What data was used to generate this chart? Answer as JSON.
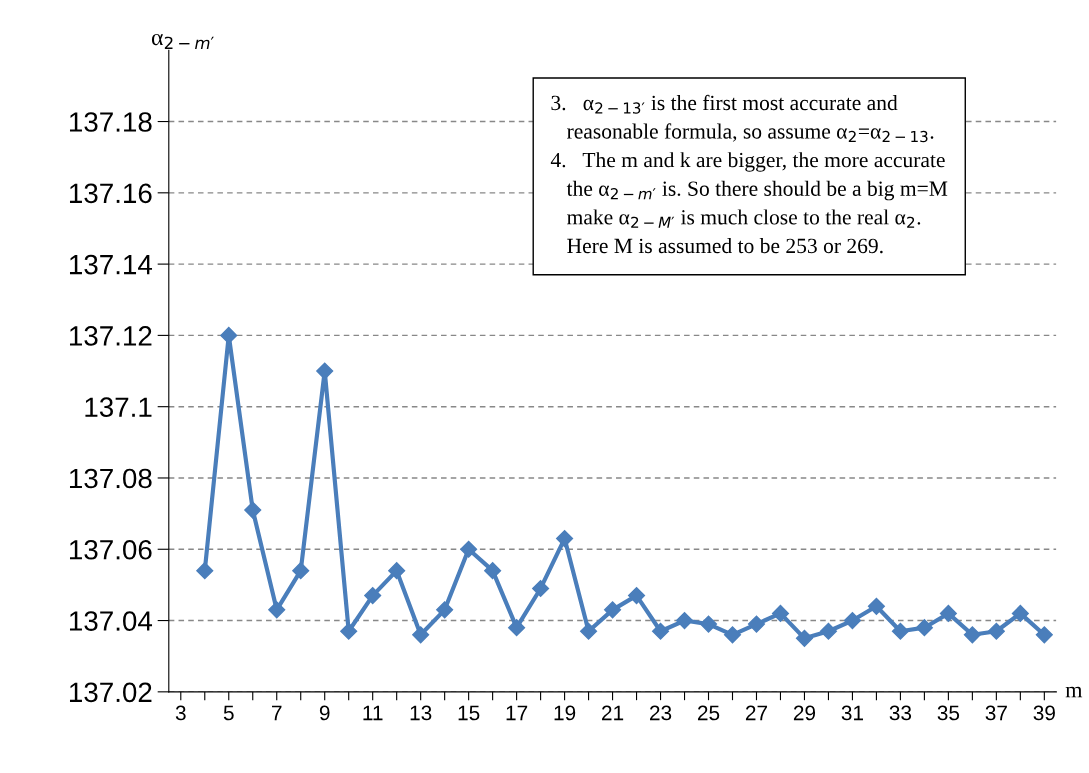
{
  "chart_data": {
    "type": "line",
    "categories": [
      "3",
      null,
      "5",
      null,
      "7",
      null,
      "9",
      null,
      "11",
      null,
      "13",
      null,
      "15",
      null,
      "17",
      null,
      "19",
      null,
      "21",
      null,
      "23",
      null,
      "25",
      null,
      "27",
      null,
      "29",
      null,
      "31",
      null,
      "33",
      null,
      "35",
      null,
      "37",
      null,
      "39"
    ],
    "series": [
      {
        "color": "#4a7ebb",
        "values": [
          null,
          137.054,
          137.12,
          137.071,
          137.043,
          137.054,
          137.11,
          137.037,
          137.047,
          137.054,
          137.036,
          137.043,
          137.06,
          137.054,
          137.038,
          137.049,
          137.063,
          137.037,
          137.043,
          137.047,
          137.037,
          137.04,
          137.039,
          137.036,
          137.039,
          137.042,
          137.035,
          137.037,
          137.04,
          137.044,
          137.037,
          137.038,
          137.042,
          137.036,
          137.037,
          137.042,
          137.036
        ]
      }
    ],
    "ylim": [
      137.02,
      137.2
    ],
    "yticks": [
      137.02,
      137.04,
      137.06,
      137.08,
      137.1,
      137.12,
      137.14,
      137.16,
      137.18
    ],
    "ylabel": "α$_{2−m′}$",
    "xlabel": "m",
    "grid": "y",
    "marker": "diamond",
    "line_style": "solid",
    "annotations": [
      "3.\tα$_{2−13′}$ is the first most accurate and\n\treasonable formula, so assume α$_{2}$=α$_{2−13}$.",
      "4.\tThe m and k are bigger, the more accurate\n\tthe α$_{2−m′}$ is. So there should be a big m=M\n\tmake α$_{2−M′}$ is much close to the real α$_{2}$.\n\tHere M is assumed to be 253 or 269."
    ]
  }
}
